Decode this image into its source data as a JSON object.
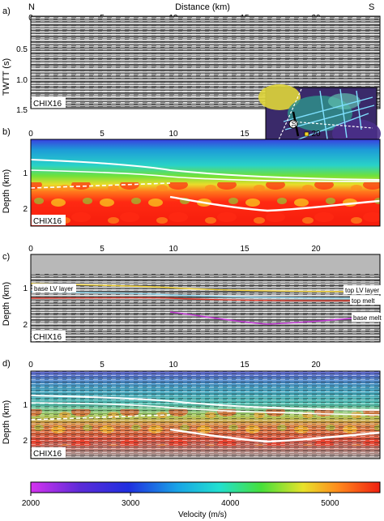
{
  "figure": {
    "top_axis": {
      "left_label": "N",
      "right_label": "S",
      "title": "Distance (km)",
      "ticks": [
        "0",
        "5",
        "10",
        "15",
        "20"
      ]
    },
    "panels": [
      {
        "letter": "a)",
        "ylabel": "TWTT (s)",
        "yticks": [
          "0.5",
          "1.0",
          "1.5"
        ],
        "line_tag": "CHIX16",
        "kind": "seismic"
      },
      {
        "letter": "b)",
        "ylabel": "Depth (km)",
        "yticks": [
          "1",
          "2"
        ],
        "line_tag": "CHIX16",
        "kind": "velocity"
      },
      {
        "letter": "c)",
        "ylabel": "Depth (km)",
        "yticks": [
          "1",
          "2"
        ],
        "line_tag": "CHIX16",
        "kind": "depth-seismic",
        "annotations": {
          "base_lv": "base LV layer",
          "top_lv": "top LV layer",
          "top_melt": "top melt",
          "base_melt": "base melt"
        }
      },
      {
        "letter": "d)",
        "ylabel": "Depth (km)",
        "yticks": [
          "1",
          "2"
        ],
        "line_tag": "CHIX16",
        "kind": "overlay"
      }
    ],
    "colorbar": {
      "label": "Velocity (m/s)",
      "ticks": [
        "2000",
        "3000",
        "4000",
        "5000"
      ],
      "min": 2000,
      "max": 5500
    },
    "inset_map": {
      "marker": "16"
    },
    "colors": {
      "top_lv": "#f2d33a",
      "base_lv": "#8fd8f0",
      "top_melt": "#e03a2c",
      "base_melt": "#c23bd4",
      "horizon_white": "#ffffff"
    }
  }
}
